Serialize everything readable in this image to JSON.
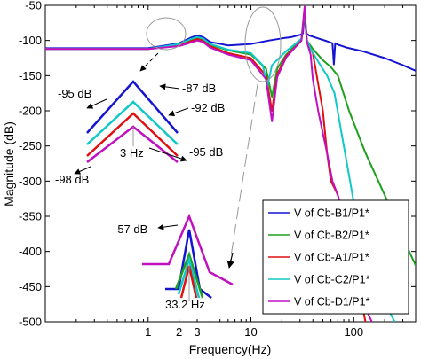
{
  "chart_data": {
    "type": "line",
    "xlabel": "Frequency(Hz)",
    "ylabel": "Magnitude (dB)",
    "xscale": "log",
    "xlim": [
      0.1,
      400
    ],
    "ylim": [
      -500,
      -50
    ],
    "x_ticks": [
      {
        "value": 1,
        "label": "1"
      },
      {
        "value": 2,
        "label": "2"
      },
      {
        "value": 3,
        "label": "3"
      },
      {
        "value": 10,
        "label": "10"
      },
      {
        "value": 100,
        "label": "100"
      }
    ],
    "y_ticks": [
      -50,
      -100,
      -150,
      -200,
      -250,
      -300,
      -350,
      -400,
      -450,
      -500
    ],
    "grid": false,
    "legend_position": "bottom-right",
    "series": [
      {
        "name": "V of Cb-B1/P1*",
        "color": "#1414d2",
        "x": [
          0.1,
          1,
          2,
          2.6,
          3,
          3.4,
          4,
          6,
          10,
          15,
          20,
          25,
          30,
          32,
          33.2,
          34.5,
          37,
          45,
          55,
          62,
          64,
          66,
          70,
          85,
          120,
          200,
          300,
          400
        ],
        "y": [
          -111,
          -111,
          -104,
          -96,
          -93,
          -95,
          -102,
          -107,
          -105,
          -100,
          -97,
          -95,
          -92,
          -90,
          -62,
          -90,
          -93,
          -97,
          -101,
          -104,
          -134,
          -104,
          -106,
          -110,
          -115,
          -125,
          -135,
          -143
        ]
      },
      {
        "name": "V of Cb-B2/P1*",
        "color": "#1ea01e",
        "x": [
          0.1,
          1,
          2,
          2.6,
          3,
          3.4,
          4,
          6,
          10,
          14,
          16,
          18,
          22,
          28,
          31,
          33.2,
          35,
          40,
          50,
          60,
          70,
          90,
          130,
          200,
          300,
          400
        ],
        "y": [
          -112,
          -112,
          -106,
          -99,
          -96,
          -98,
          -106,
          -114,
          -120,
          -140,
          -180,
          -140,
          -120,
          -105,
          -98,
          -60,
          -100,
          -112,
          -128,
          -138,
          -150,
          -200,
          -260,
          -320,
          -380,
          -420
        ]
      },
      {
        "name": "V of Cb-A1/P1*",
        "color": "#e01010",
        "x": [
          0.1,
          1,
          2,
          2.6,
          3,
          3.4,
          4,
          6,
          10,
          14,
          16,
          18,
          22,
          28,
          31,
          33.2,
          35,
          40,
          50,
          55,
          60,
          65,
          70,
          80,
          100,
          130
        ],
        "y": [
          -112,
          -112,
          -107,
          -101,
          -98,
          -100,
          -108,
          -118,
          -125,
          -150,
          -200,
          -148,
          -122,
          -107,
          -100,
          -58,
          -102,
          -118,
          -200,
          -260,
          -300,
          -310,
          -320,
          -355,
          -420,
          -500
        ]
      },
      {
        "name": "V of Cb-C2/P1*",
        "color": "#10c8c8",
        "x": [
          0.1,
          1,
          2,
          2.6,
          3,
          3.4,
          4,
          6,
          10,
          13,
          14.5,
          16,
          22,
          28,
          31,
          33.2,
          35,
          38,
          45,
          55,
          65,
          80,
          100,
          130,
          180,
          250
        ],
        "y": [
          -112,
          -112,
          -105,
          -98,
          -95,
          -97,
          -105,
          -113,
          -118,
          -135,
          -165,
          -135,
          -115,
          -103,
          -97,
          -58,
          -99,
          -112,
          -130,
          -150,
          -175,
          -250,
          -330,
          -400,
          -460,
          -500
        ]
      },
      {
        "name": "V of Cb-D1/P1*",
        "color": "#c010c0",
        "x": [
          0.1,
          1,
          2,
          2.6,
          3,
          3.4,
          4,
          6,
          10,
          14,
          16,
          18,
          22,
          28,
          31,
          33.2,
          35,
          38,
          40,
          45,
          55,
          62,
          70,
          85,
          100,
          120,
          150
        ],
        "y": [
          -112,
          -112,
          -108,
          -103,
          -100,
          -102,
          -110,
          -120,
          -128,
          -155,
          -215,
          -152,
          -124,
          -107,
          -100,
          -52,
          -102,
          -120,
          -155,
          -200,
          -260,
          -300,
          -320,
          -370,
          -420,
          -470,
          -500
        ]
      }
    ],
    "annotations": [
      {
        "text": "-95 dB"
      },
      {
        "text": "-87 dB"
      },
      {
        "text": "-92 dB"
      },
      {
        "text": "-95 dB"
      },
      {
        "text": "-98 dB"
      },
      {
        "text": "3 Hz"
      },
      {
        "text": "-57 dB"
      },
      {
        "text": "33.2 Hz"
      }
    ]
  }
}
